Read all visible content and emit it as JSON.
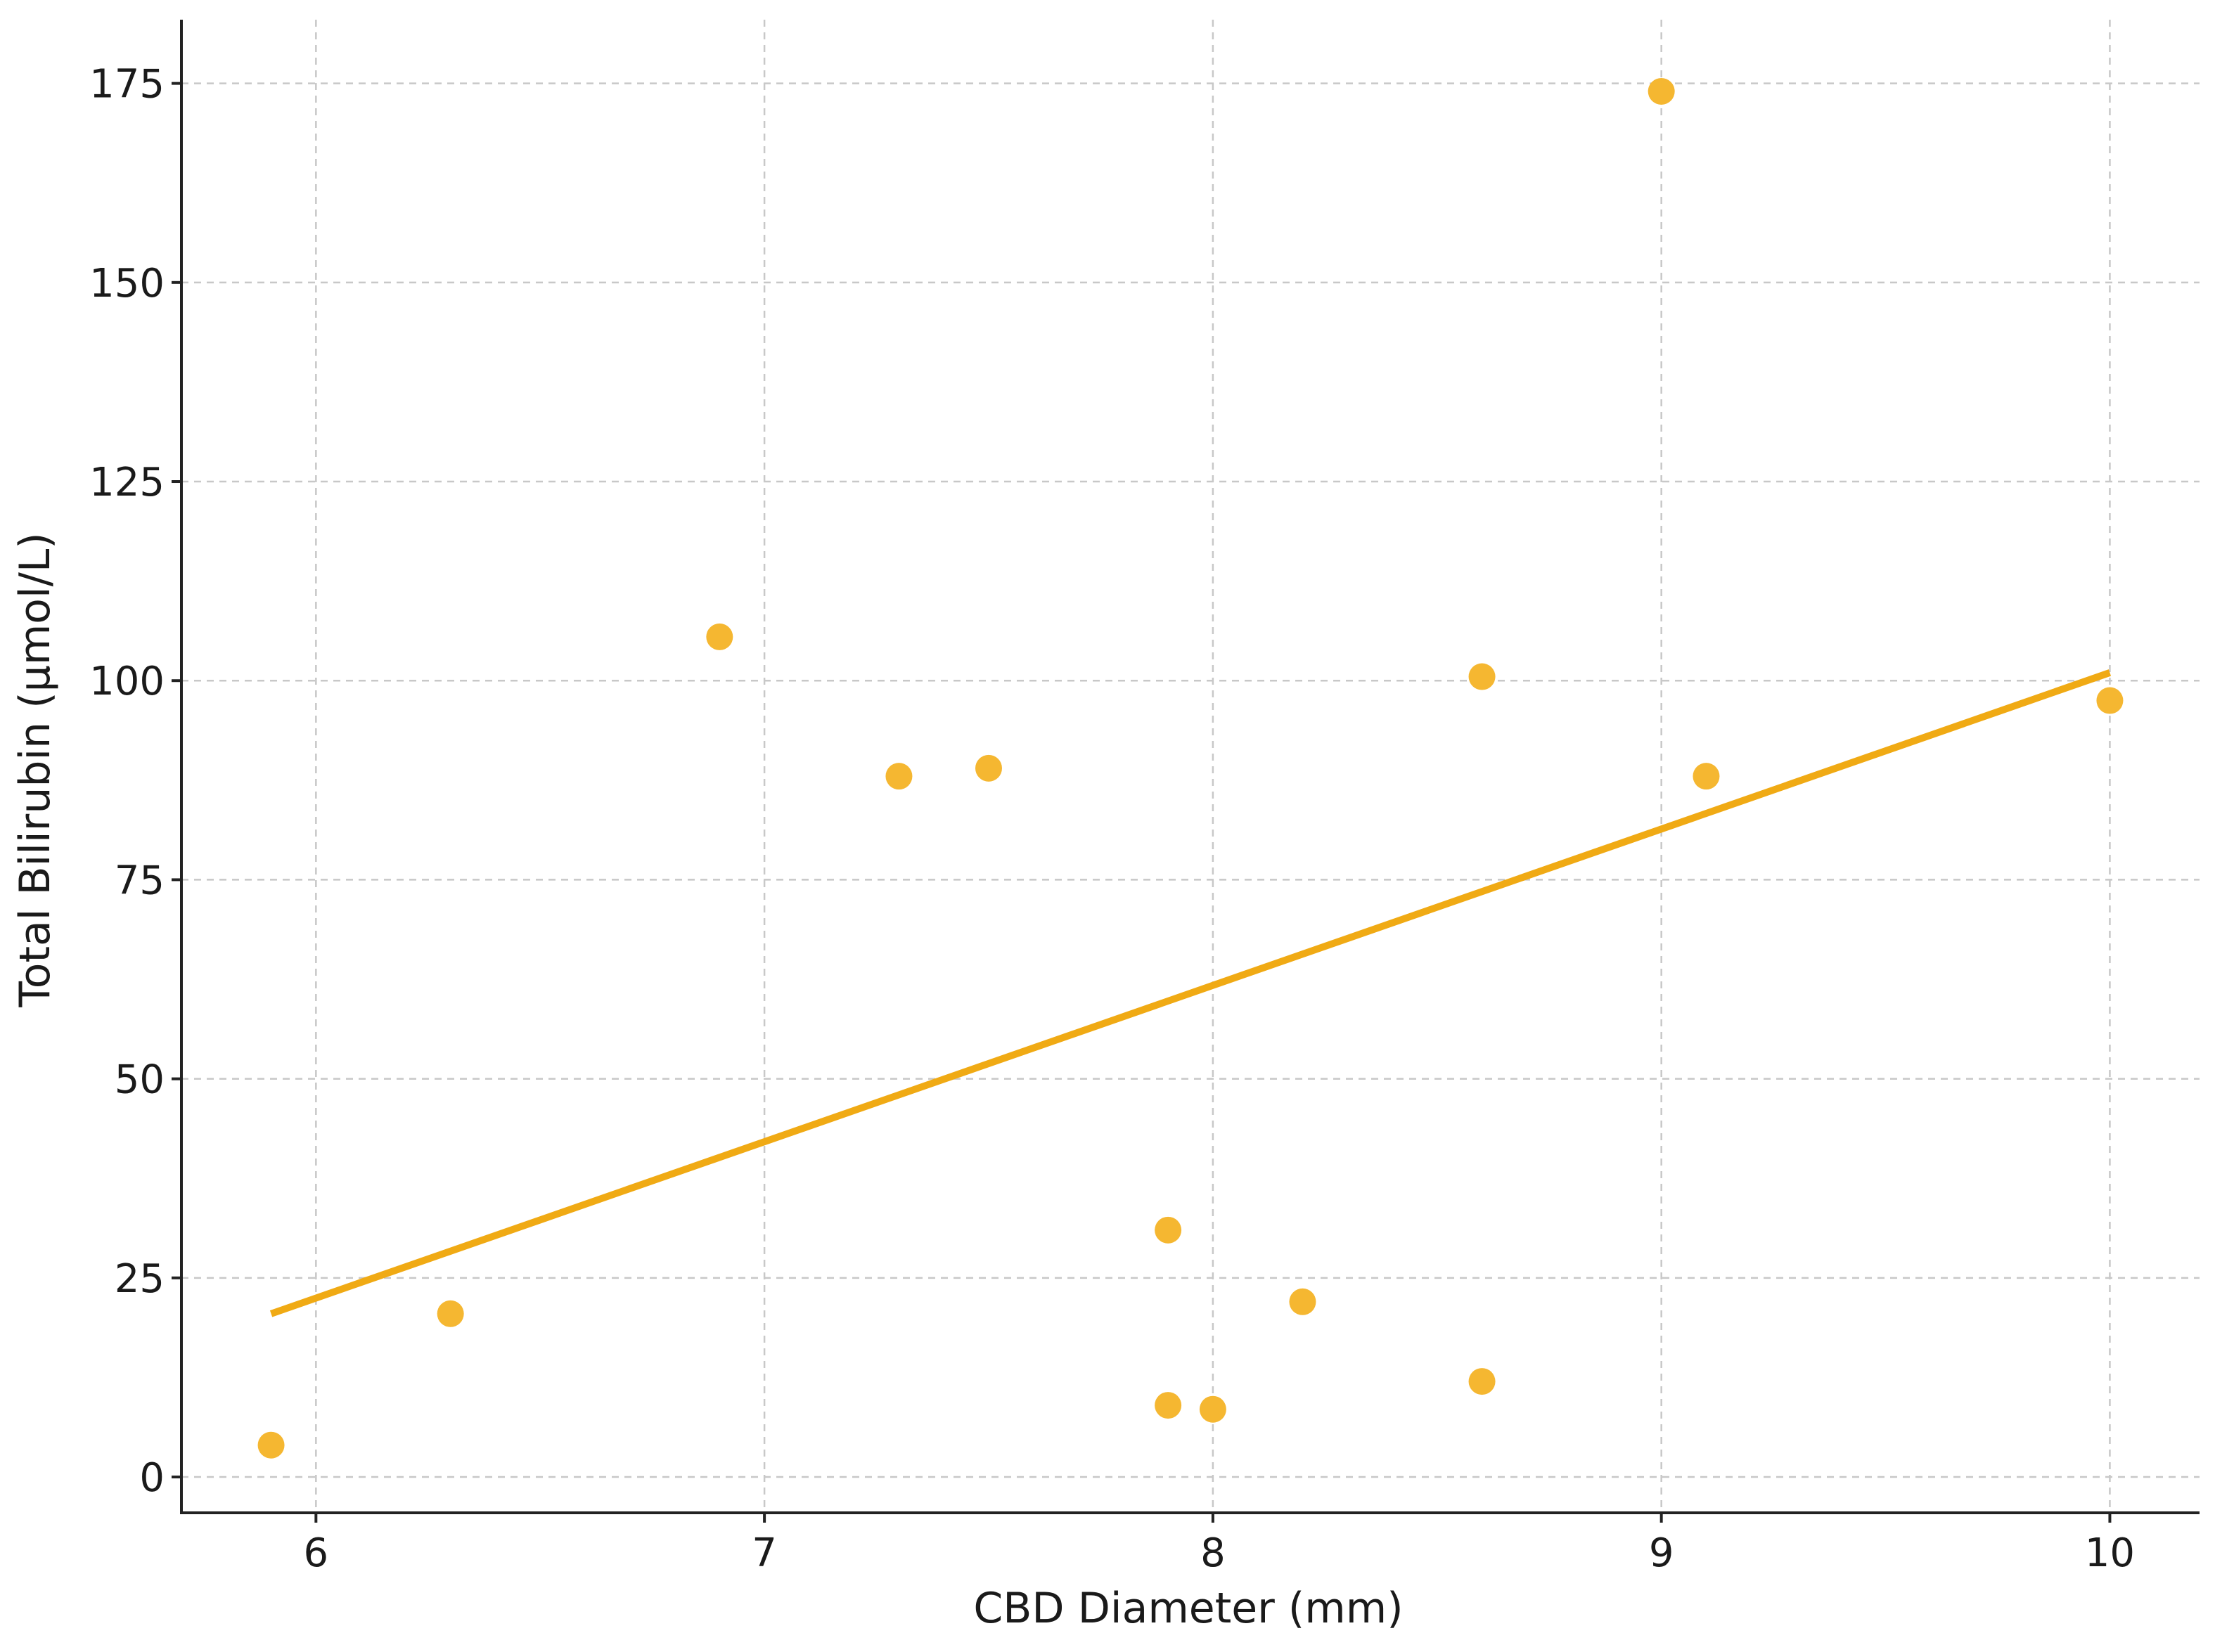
{
  "chart_data": {
    "type": "scatter",
    "title": "",
    "xlabel": "CBD Diameter (mm)",
    "ylabel": "Total Bilirubin (µmol/L)",
    "xlim": [
      5.7,
      10.2
    ],
    "ylim": [
      -4.5,
      183
    ],
    "xticks": [
      6,
      7,
      8,
      9,
      10
    ],
    "yticks": [
      0,
      25,
      50,
      75,
      100,
      125,
      150,
      175
    ],
    "grid": true,
    "legend": "none",
    "point_color": "#f5b731",
    "line_color": "#f0aa14",
    "series": [
      {
        "points": [
          {
            "x": 5.9,
            "y": 4
          },
          {
            "x": 6.3,
            "y": 20.5
          },
          {
            "x": 6.9,
            "y": 105.5
          },
          {
            "x": 7.3,
            "y": 88
          },
          {
            "x": 7.5,
            "y": 89
          },
          {
            "x": 7.9,
            "y": 31
          },
          {
            "x": 7.9,
            "y": 9
          },
          {
            "x": 8.0,
            "y": 8.5
          },
          {
            "x": 8.2,
            "y": 22
          },
          {
            "x": 8.6,
            "y": 100.5
          },
          {
            "x": 8.6,
            "y": 12
          },
          {
            "x": 9.0,
            "y": 174
          },
          {
            "x": 9.1,
            "y": 88
          },
          {
            "x": 10.0,
            "y": 97.5
          }
        ]
      }
    ],
    "trendline": {
      "x": [
        5.9,
        10.0
      ],
      "y": [
        20.5,
        101
      ]
    }
  }
}
